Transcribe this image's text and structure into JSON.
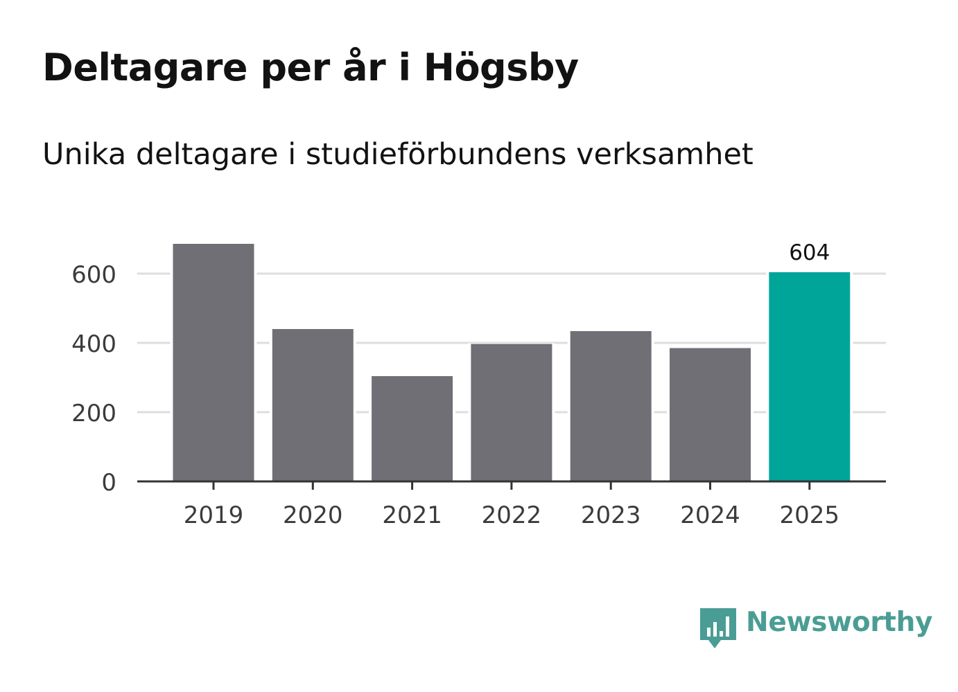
{
  "title": "Deltagare per år i Högsby",
  "subtitle": "Unika deltagare i studieförbundens verksamhet",
  "brand": {
    "name": "Newsworthy",
    "icon": "newsworthy-logo-icon",
    "color": "#4a9d94"
  },
  "chart_data": {
    "type": "bar",
    "categories": [
      "2019",
      "2020",
      "2021",
      "2022",
      "2023",
      "2024",
      "2025"
    ],
    "values": [
      686,
      440,
      304,
      397,
      434,
      385,
      604
    ],
    "title": "",
    "xlabel": "",
    "ylabel": "",
    "ylim": [
      0,
      700
    ],
    "yticks": [
      0,
      200,
      400,
      600
    ],
    "grid": true,
    "legend": "none",
    "data_labels": [
      {
        "category": "2025",
        "value": "604"
      }
    ],
    "colors": {
      "default_bar": "#706f75",
      "highlight_bar": "#00a59a",
      "highlight_category": "2025",
      "grid": "#dedede",
      "axis": "#333333",
      "tick_text": "#3b3b3b"
    }
  }
}
